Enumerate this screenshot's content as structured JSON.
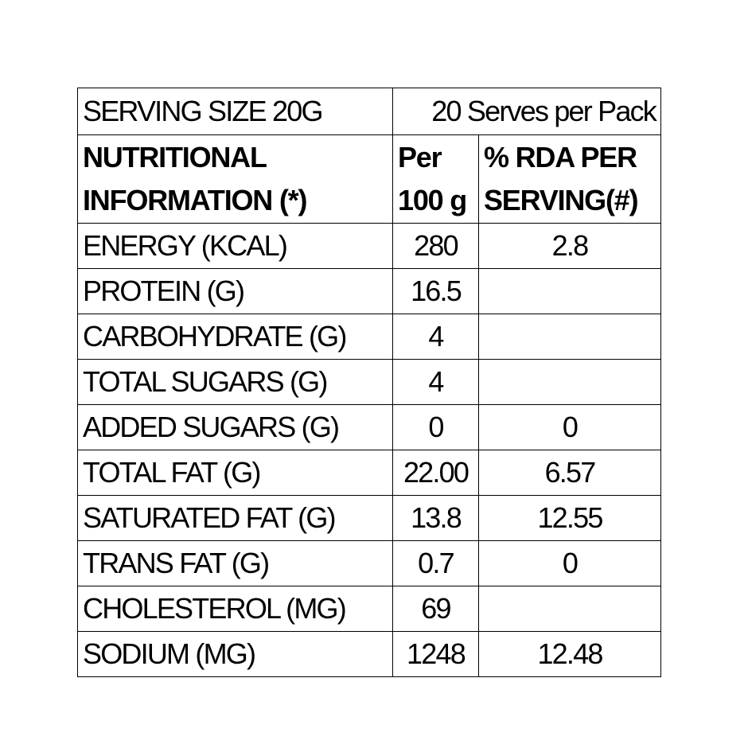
{
  "header": {
    "serving_size": "SERVING SIZE 20G",
    "serves_per_pack": "20 Serves per Pack"
  },
  "columns": {
    "nutrient_line1": "NUTRITIONAL",
    "nutrient_line2": "INFORMATION (*)",
    "per100_line1": "Per",
    "per100_line2": "100 g",
    "rda_line1": "% RDA PER",
    "rda_line2": "SERVING(#)"
  },
  "rows": [
    {
      "name": "ENERGY (KCAL)",
      "per100": "280",
      "rda": "2.8"
    },
    {
      "name": "PROTEIN (G)",
      "per100": "16.5",
      "rda": ""
    },
    {
      "name": "CARBOHYDRATE (G)",
      "per100": "4",
      "rda": ""
    },
    {
      "name": "TOTAL SUGARS (G)",
      "per100": "4",
      "rda": ""
    },
    {
      "name": "ADDED SUGARS (G)",
      "per100": "0",
      "rda": "0"
    },
    {
      "name": "TOTAL FAT (G)",
      "per100": "22.00",
      "rda": "6.57"
    },
    {
      "name": "SATURATED FAT (G)",
      "per100": "13.8",
      "rda": "12.55"
    },
    {
      "name": "TRANS FAT (G)",
      "per100": "0.7",
      "rda": "0"
    },
    {
      "name": "CHOLESTEROL (MG)",
      "per100": "69",
      "rda": ""
    },
    {
      "name": "SODIUM (MG)",
      "per100": "1248",
      "rda": "12.48"
    }
  ]
}
